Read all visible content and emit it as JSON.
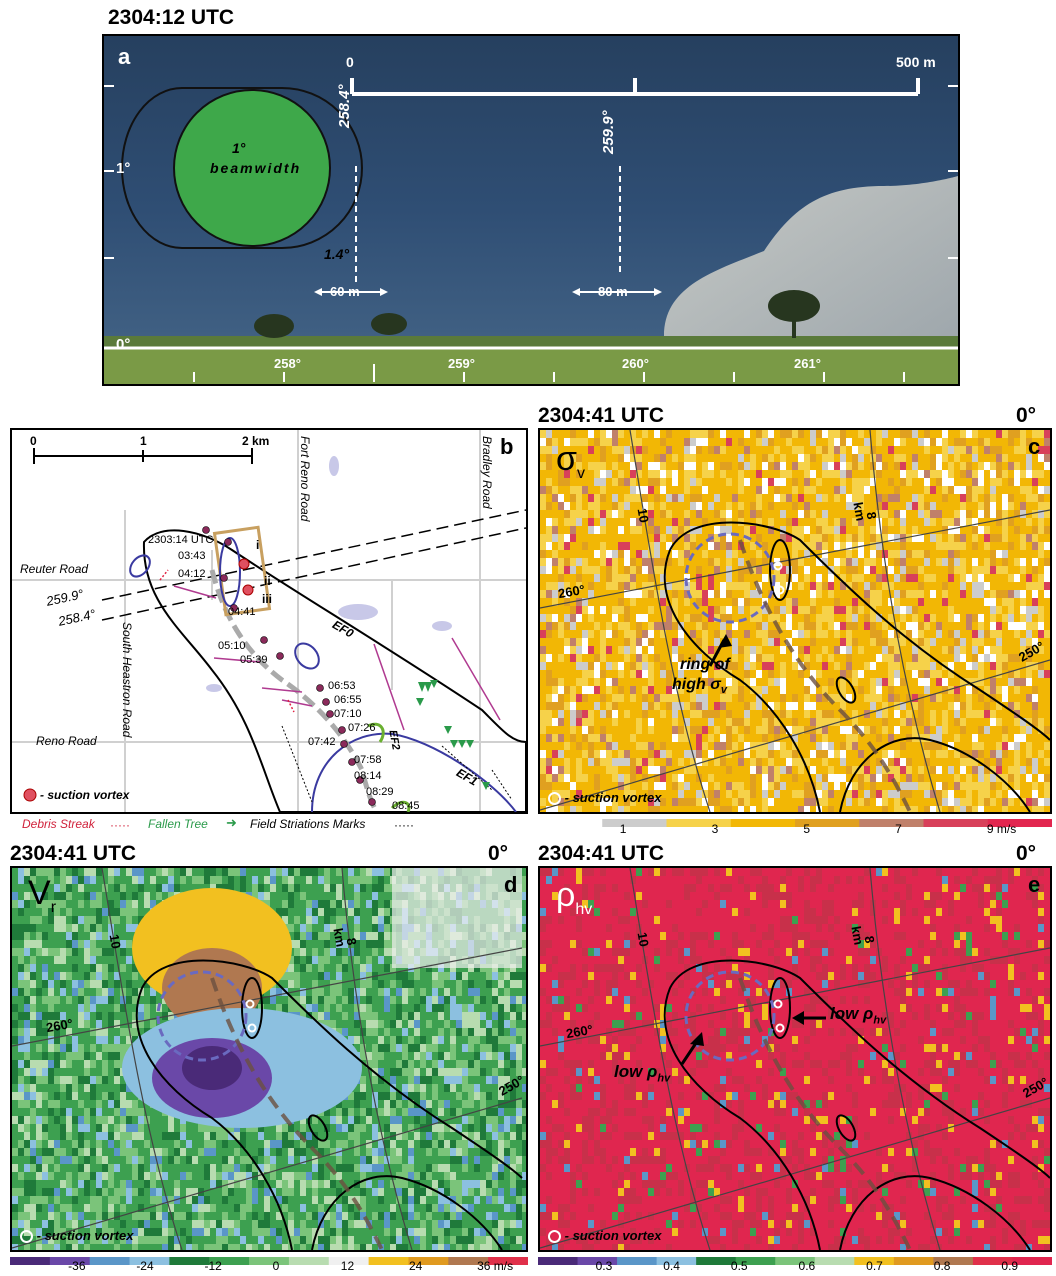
{
  "panel_a": {
    "time": "2304:12 UTC",
    "letter": "a",
    "scale_start": "0",
    "scale_end": "500 m",
    "beam_line1": "1°",
    "beam_line2": "beamwidth",
    "az1": "258.4°",
    "az2": "259.9°",
    "width_label": "1.4°",
    "dist1": "60 m",
    "dist2": "80 m",
    "elev_top": "1°",
    "elev_bottom": "0°",
    "azimuth_ticks": [
      "258°",
      "259°",
      "260°",
      "261°"
    ]
  },
  "panel_b": {
    "letter": "b",
    "scale": [
      "0",
      "1",
      "2 km"
    ],
    "roads": {
      "fort_reno": "Fort Reno Road",
      "bradley": "Bradley Road",
      "reuter": "Reuter Road",
      "south_heastron": "South Heastron Road",
      "reno": "Reno Road"
    },
    "az_lines": [
      "259.9°",
      "258.4°"
    ],
    "times": [
      "2303:14 UTC",
      "03:43",
      "04:12",
      "04:41",
      "05:10",
      "05:39",
      "06:53",
      "06:55",
      "07:10",
      "07:26",
      "07:42",
      "07:58",
      "08:14",
      "08:29",
      "08:45"
    ],
    "roman": [
      "i",
      "ii",
      "iii"
    ],
    "ratings": [
      "EF0",
      "EF1",
      "EF2"
    ],
    "suction_legend": "- suction vortex",
    "legend": {
      "debris": "Debris Streak",
      "tree": "Fallen Tree",
      "striation": "Field Striations Marks"
    }
  },
  "panel_c": {
    "time": "2304:41 UTC",
    "elev": "0°",
    "letter": "c",
    "var": "σ",
    "var_sub": "v",
    "km": "km",
    "range_label": "8",
    "range_label2": "10",
    "az_a": "260°",
    "az_b": "250°",
    "annotation_line1": "ring of",
    "annotation_line2": "high σ",
    "annotation_sub": "v",
    "suction_legend": "- suction vortex",
    "colorbar_labels": [
      "1",
      "3",
      "5",
      "7",
      "9 m/s"
    ],
    "colors": [
      "#ffffff",
      "#cccccc",
      "#f6d24a",
      "#f2b705",
      "#e0a020",
      "#c0806a",
      "#d8405a",
      "#e2264f"
    ]
  },
  "panel_d": {
    "time": "2304:41 UTC",
    "elev": "0°",
    "letter": "d",
    "var": "V",
    "var_sub": "r",
    "km": "km",
    "range_label": "8",
    "range_label2": "10",
    "az_a": "260°",
    "az_b": "250°",
    "suction_legend": "- suction vortex",
    "colorbar_labels": [
      "-36",
      "-24",
      "-12",
      "0",
      "12",
      "24",
      "36 m/s"
    ],
    "colors": [
      "#4a2a78",
      "#6a48a8",
      "#5a96c8",
      "#8cc0e0",
      "#1f7a3a",
      "#3da050",
      "#7bc47a",
      "#b8dcb0",
      "#f0f0f0",
      "#f2c020",
      "#e09a20",
      "#b07850",
      "#e0304a"
    ]
  },
  "panel_e": {
    "time": "2304:41 UTC",
    "elev": "0°",
    "letter": "e",
    "var": "ρ",
    "var_sub": "hv",
    "km": "km",
    "range_label": "8",
    "range_label2": "10",
    "az_a": "260°",
    "az_b": "250°",
    "annotation_a": "low ρ",
    "annotation_b": "low ρ",
    "annotation_sub": "hv",
    "suction_legend": "- suction vortex",
    "colorbar_labels": [
      "0.3",
      "0.4",
      "0.5",
      "0.6",
      "0.7",
      "0.8",
      "0.9"
    ],
    "colors": [
      "#e0264f",
      "#c8304a",
      "#f2c020",
      "#3da050",
      "#5a96c8"
    ]
  }
}
